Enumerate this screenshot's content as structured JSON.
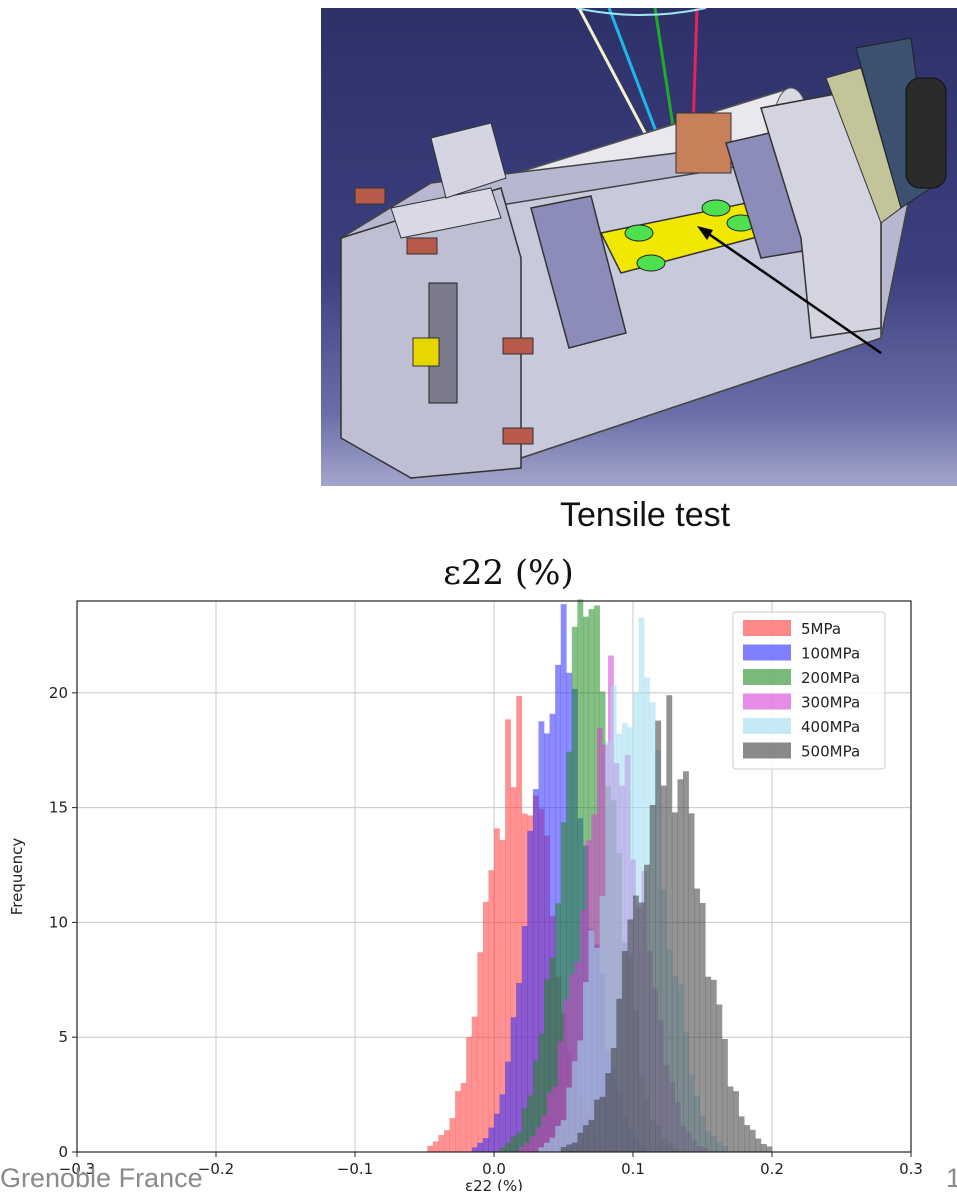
{
  "caption": "Tensile test",
  "footer": {
    "left": "Grenoble France",
    "right": "1"
  },
  "colors": {
    "5MPa": "#ff3b3b",
    "100MPa": "#2b2bff",
    "200MPa": "#1f8a1f",
    "300MPa": "#d640d6",
    "400MPa": "#9fdcef",
    "500MPa": "#3a3a3a"
  },
  "chart_data": {
    "type": "bar",
    "subtype": "histogram",
    "title": "ε22 (%)",
    "xlabel": "ε22 (%)",
    "ylabel": "Frequency",
    "xlim": [
      -0.3,
      0.3
    ],
    "ylim": [
      0,
      24
    ],
    "xticks": [
      "−0.3",
      "−0.2",
      "−0.1",
      "0.0",
      "0.1",
      "0.2",
      "0.3"
    ],
    "yticks": [
      "0",
      "5",
      "10",
      "15",
      "20"
    ],
    "grid": true,
    "legend_position": "top-right",
    "bin_width": 0.004,
    "series": [
      {
        "name": "5MPa",
        "mean": 0.018,
        "std": 0.022,
        "peak": 17.8,
        "min": -0.08,
        "max": 0.1
      },
      {
        "name": "100MPa",
        "mean": 0.047,
        "std": 0.02,
        "peak": 22.3,
        "min": -0.04,
        "max": 0.12
      },
      {
        "name": "200MPa",
        "mean": 0.068,
        "std": 0.02,
        "peak": 23.0,
        "min": -0.02,
        "max": 0.15
      },
      {
        "name": "300MPa",
        "mean": 0.085,
        "std": 0.022,
        "peak": 18.5,
        "min": -0.01,
        "max": 0.17
      },
      {
        "name": "400MPa",
        "mean": 0.1,
        "std": 0.022,
        "peak": 21.6,
        "min": 0.0,
        "max": 0.19
      },
      {
        "name": "500MPa",
        "mean": 0.125,
        "std": 0.025,
        "peak": 16.9,
        "min": 0.02,
        "max": 0.26
      }
    ]
  }
}
